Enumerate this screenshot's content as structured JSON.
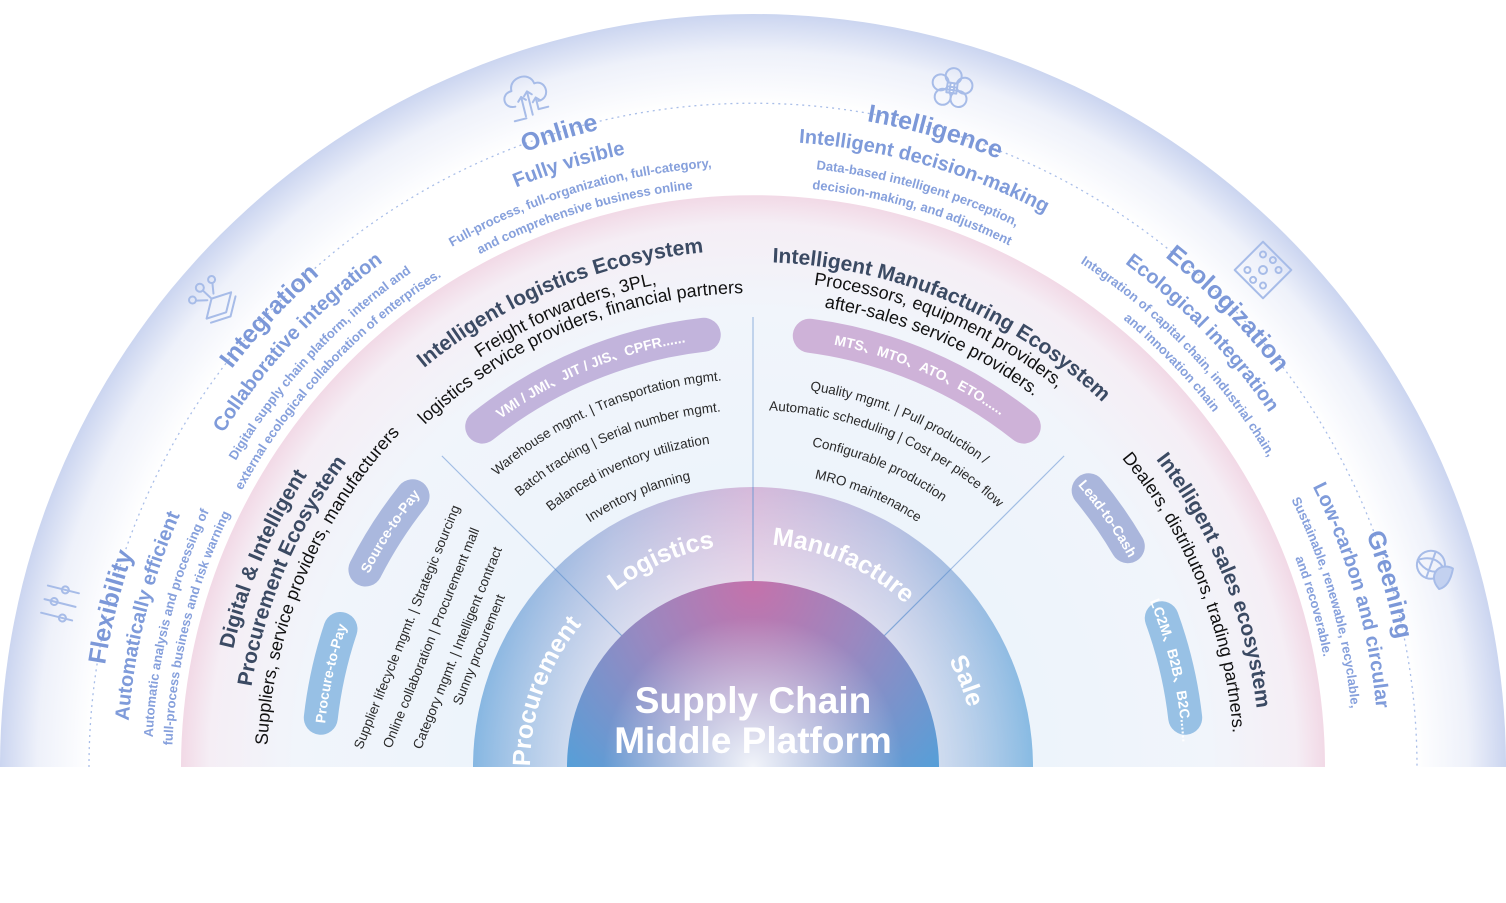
{
  "pillars": [
    {
      "title": "Flexibility",
      "subtitle": "Automatically efficient",
      "desc": [
        "Automatic analysis and processing of",
        "full-process business and risk warning"
      ],
      "icon": "sliders-icon"
    },
    {
      "title": "Integration",
      "subtitle": "Collaborative integration",
      "desc": [
        "Digital supply chain platform, internal and",
        "external ecological collaboration of enterprises."
      ],
      "icon": "layers-network-icon"
    },
    {
      "title": "Online",
      "subtitle": "Fully visible",
      "desc": [
        "Full-process, full-organization, full-category,",
        "and comprehensive business online"
      ],
      "icon": "cloud-upload-icon"
    },
    {
      "title": "Intelligence",
      "subtitle": "Intelligent decision-making",
      "desc": [
        "Data-based intelligent perception,",
        "decision-making, and adjustment"
      ],
      "icon": "brain-chip-icon"
    },
    {
      "title": "Ecologization",
      "subtitle": "Ecological integration",
      "desc": [
        "Integration of capital chain, industrial chain,",
        "and innovation chain"
      ],
      "icon": "network-diamond-icon"
    },
    {
      "title": "Greening",
      "subtitle": "Low-carbon and circular",
      "desc": [
        "Sustainable, renewable, recyclable,",
        "and recoverable."
      ],
      "icon": "leaf-globe-icon"
    }
  ],
  "ecosystems": {
    "procurement": {
      "lines": [
        "Digital & Intelligent",
        "Procurement Ecosystem",
        "Suppliers, service providers, manufacturers"
      ],
      "pills": [
        "Source-to-Pay",
        "Procure-to-Pay"
      ],
      "items": [
        "Supplier lifecycle mgmt. | Strategic sourcing",
        "Online collaboration | Procurement mall",
        "Category mgmt. | Intelligent contract",
        "Sunny procurement"
      ]
    },
    "logistics": {
      "lines": [
        "Intelligent logistics Ecosystem",
        "Freight forwarders, 3PL,",
        "logistics service providers, financial partners"
      ],
      "pills": [
        "VMI / JMI、JIT / JIS、CPFR......"
      ],
      "items": [
        "Warehouse mgmt. | Transportation mgmt.",
        "Batch tracking | Serial number mgmt.",
        "Balanced inventory utilization",
        "Inventory planning"
      ]
    },
    "manufacturing": {
      "lines": [
        "Intelligent Manufacturing Ecosystem",
        "Processors, equipment providers,",
        "after-sales service providers."
      ],
      "pills": [
        "MTS、MTO、ATO、ETO......"
      ],
      "items": [
        "Quality mgmt. | Pull production /",
        "Automatic scheduling | Cost per piece flow",
        "Configurable production",
        "MRO maintenance"
      ]
    },
    "sales": {
      "lines": [
        "Intelligent sales ecosystem",
        "Dealers, distributors, trading partners."
      ],
      "pills": [
        "Lead-to-Cash",
        "LC2M、B2B、B2C......"
      ]
    }
  },
  "modules": [
    "Procurement",
    "Logistics",
    "Manufacture",
    "Sale"
  ],
  "center": [
    "Supply Chain",
    "Middle Platform"
  ],
  "colors": {
    "accent_text": "#7c98d8",
    "ecosystem_title": "#3b4a63",
    "ring_pink": "#f1d9e6",
    "ring_blue": "#8dbce3"
  }
}
